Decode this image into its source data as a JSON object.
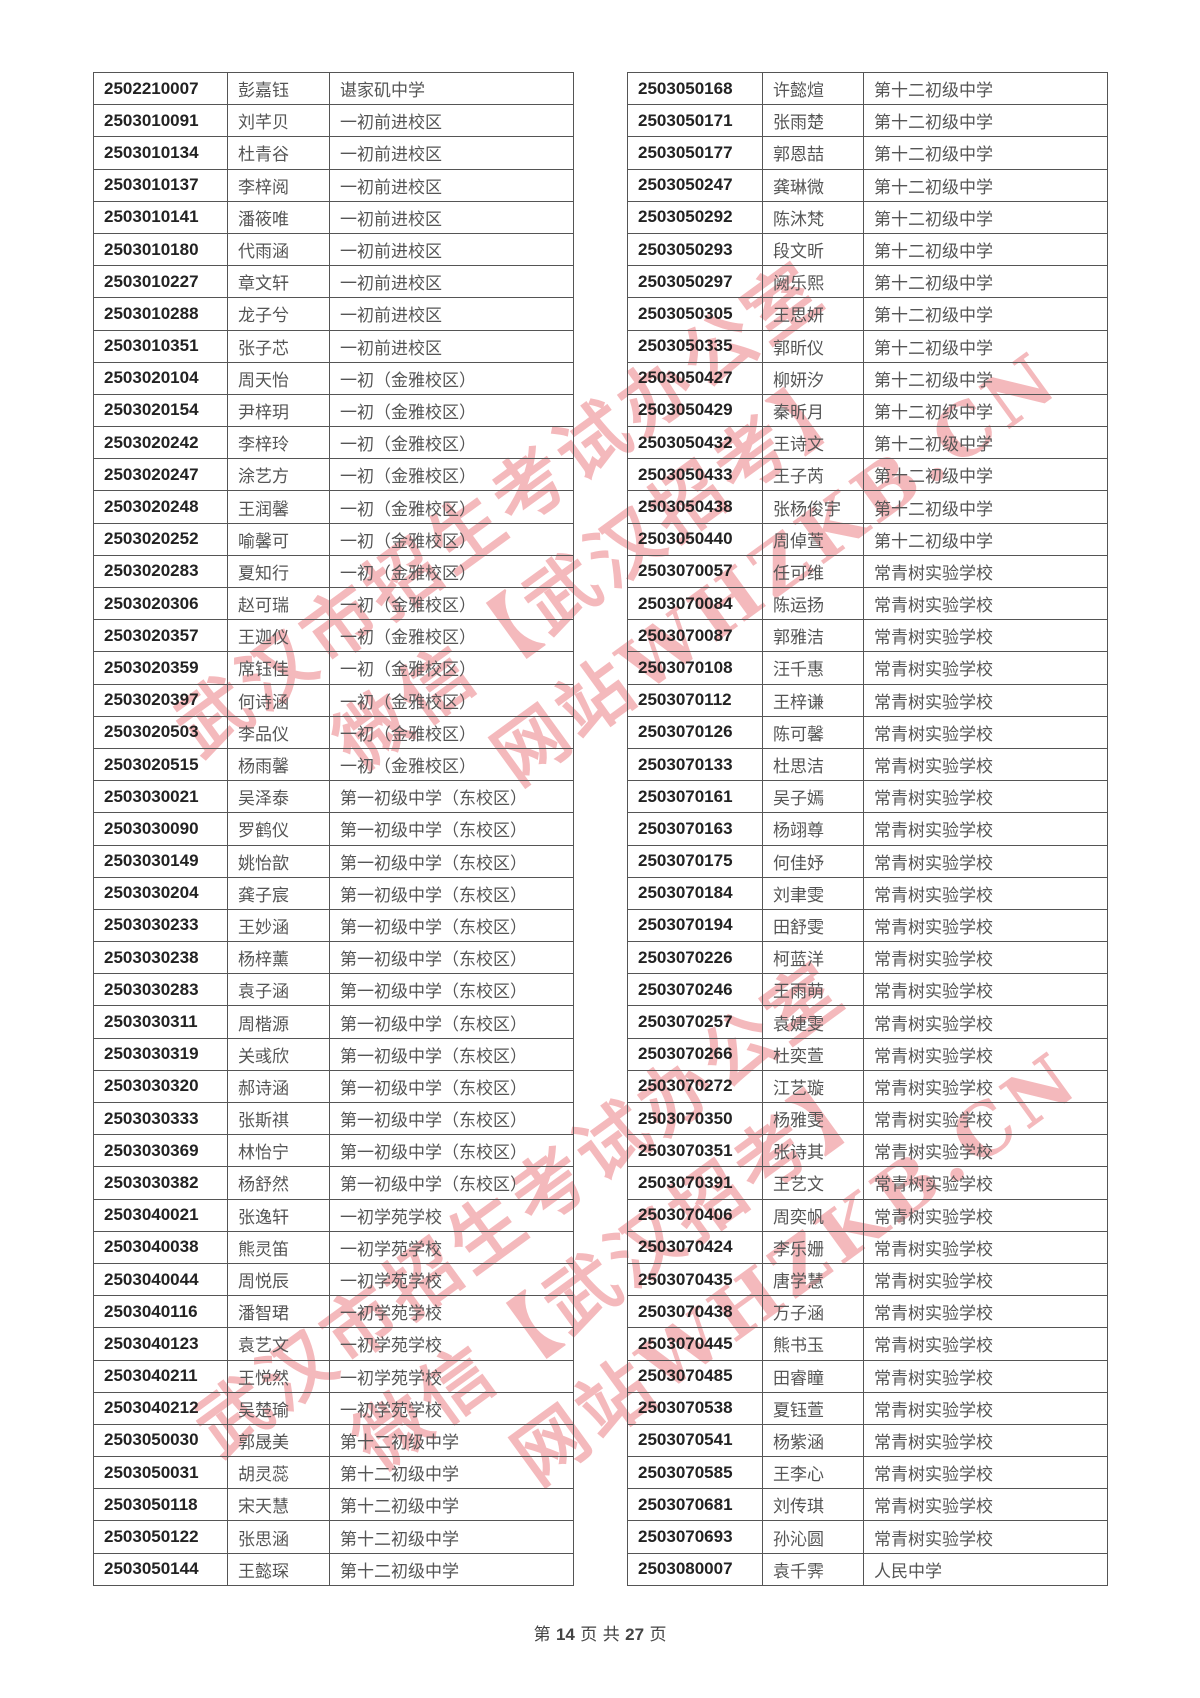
{
  "left_rows": [
    [
      "2502210007",
      "彭嘉钰",
      "谌家矶中学"
    ],
    [
      "2503010091",
      "刘芊贝",
      "一初前进校区"
    ],
    [
      "2503010134",
      "杜青谷",
      "一初前进校区"
    ],
    [
      "2503010137",
      "李梓阅",
      "一初前进校区"
    ],
    [
      "2503010141",
      "潘筱唯",
      "一初前进校区"
    ],
    [
      "2503010180",
      "代雨涵",
      "一初前进校区"
    ],
    [
      "2503010227",
      "章文轩",
      "一初前进校区"
    ],
    [
      "2503010288",
      "龙子兮",
      "一初前进校区"
    ],
    [
      "2503010351",
      "张子芯",
      "一初前进校区"
    ],
    [
      "2503020104",
      "周天怡",
      "一初（金雅校区）"
    ],
    [
      "2503020154",
      "尹梓玥",
      "一初（金雅校区）"
    ],
    [
      "2503020242",
      "李梓玲",
      "一初（金雅校区）"
    ],
    [
      "2503020247",
      "涂艺方",
      "一初（金雅校区）"
    ],
    [
      "2503020248",
      "王润馨",
      "一初（金雅校区）"
    ],
    [
      "2503020252",
      "喻馨可",
      "一初（金雅校区）"
    ],
    [
      "2503020283",
      "夏知行",
      "一初（金雅校区）"
    ],
    [
      "2503020306",
      "赵可瑞",
      "一初（金雅校区）"
    ],
    [
      "2503020357",
      "王迦仪",
      "一初（金雅校区）"
    ],
    [
      "2503020359",
      "席钰佳",
      "一初（金雅校区）"
    ],
    [
      "2503020397",
      "何诗涵",
      "一初（金雅校区）"
    ],
    [
      "2503020503",
      "李品仪",
      "一初（金雅校区）"
    ],
    [
      "2503020515",
      "杨雨馨",
      "一初（金雅校区）"
    ],
    [
      "2503030021",
      "吴泽泰",
      "第一初级中学（东校区）"
    ],
    [
      "2503030090",
      "罗鹤仪",
      "第一初级中学（东校区）"
    ],
    [
      "2503030149",
      "姚怡歆",
      "第一初级中学（东校区）"
    ],
    [
      "2503030204",
      "龚子宸",
      "第一初级中学（东校区）"
    ],
    [
      "2503030233",
      "王妙涵",
      "第一初级中学（东校区）"
    ],
    [
      "2503030238",
      "杨梓薰",
      "第一初级中学（东校区）"
    ],
    [
      "2503030283",
      "袁子涵",
      "第一初级中学（东校区）"
    ],
    [
      "2503030311",
      "周楷源",
      "第一初级中学（东校区）"
    ],
    [
      "2503030319",
      "关彧欣",
      "第一初级中学（东校区）"
    ],
    [
      "2503030320",
      "郝诗涵",
      "第一初级中学（东校区）"
    ],
    [
      "2503030333",
      "张斯祺",
      "第一初级中学（东校区）"
    ],
    [
      "2503030369",
      "林怡宁",
      "第一初级中学（东校区）"
    ],
    [
      "2503030382",
      "杨舒然",
      "第一初级中学（东校区）"
    ],
    [
      "2503040021",
      "张逸轩",
      "一初学苑学校"
    ],
    [
      "2503040038",
      "熊灵笛",
      "一初学苑学校"
    ],
    [
      "2503040044",
      "周悦辰",
      "一初学苑学校"
    ],
    [
      "2503040116",
      "潘智珺",
      "一初学苑学校"
    ],
    [
      "2503040123",
      "袁艺文",
      "一初学苑学校"
    ],
    [
      "2503040211",
      "王悦然",
      "一初学苑学校"
    ],
    [
      "2503040212",
      "吴楚瑜",
      "一初学苑学校"
    ],
    [
      "2503050030",
      "郭晟美",
      "第十二初级中学"
    ],
    [
      "2503050031",
      "胡灵蕊",
      "第十二初级中学"
    ],
    [
      "2503050118",
      "宋天慧",
      "第十二初级中学"
    ],
    [
      "2503050122",
      "张思涵",
      "第十二初级中学"
    ],
    [
      "2503050144",
      "王懿琛",
      "第十二初级中学"
    ]
  ],
  "right_rows": [
    [
      "2503050168",
      "许懿煊",
      "第十二初级中学"
    ],
    [
      "2503050171",
      "张雨楚",
      "第十二初级中学"
    ],
    [
      "2503050177",
      "郭恩喆",
      "第十二初级中学"
    ],
    [
      "2503050247",
      "龚琳微",
      "第十二初级中学"
    ],
    [
      "2503050292",
      "陈沐梵",
      "第十二初级中学"
    ],
    [
      "2503050293",
      "段文昕",
      "第十二初级中学"
    ],
    [
      "2503050297",
      "阙乐熙",
      "第十二初级中学"
    ],
    [
      "2503050305",
      "王思妍",
      "第十二初级中学"
    ],
    [
      "2503050335",
      "郭昕仪",
      "第十二初级中学"
    ],
    [
      "2503050427",
      "柳妍汐",
      "第十二初级中学"
    ],
    [
      "2503050429",
      "秦昕月",
      "第十二初级中学"
    ],
    [
      "2503050432",
      "王诗文",
      "第十二初级中学"
    ],
    [
      "2503050433",
      "王子芮",
      "第十二初级中学"
    ],
    [
      "2503050438",
      "张杨俊宇",
      "第十二初级中学"
    ],
    [
      "2503050440",
      "周倬萱",
      "第十二初级中学"
    ],
    [
      "2503070057",
      "任可维",
      "常青树实验学校"
    ],
    [
      "2503070084",
      "陈运扬",
      "常青树实验学校"
    ],
    [
      "2503070087",
      "郭雅洁",
      "常青树实验学校"
    ],
    [
      "2503070108",
      "汪千惠",
      "常青树实验学校"
    ],
    [
      "2503070112",
      "王梓谦",
      "常青树实验学校"
    ],
    [
      "2503070126",
      "陈可馨",
      "常青树实验学校"
    ],
    [
      "2503070133",
      "杜思洁",
      "常青树实验学校"
    ],
    [
      "2503070161",
      "吴子嫣",
      "常青树实验学校"
    ],
    [
      "2503070163",
      "杨翊尊",
      "常青树实验学校"
    ],
    [
      "2503070175",
      "何佳妤",
      "常青树实验学校"
    ],
    [
      "2503070184",
      "刘聿雯",
      "常青树实验学校"
    ],
    [
      "2503070194",
      "田舒雯",
      "常青树实验学校"
    ],
    [
      "2503070226",
      "柯蓝洋",
      "常青树实验学校"
    ],
    [
      "2503070246",
      "王雨萌",
      "常青树实验学校"
    ],
    [
      "2503070257",
      "袁婕雯",
      "常青树实验学校"
    ],
    [
      "2503070266",
      "杜奕萱",
      "常青树实验学校"
    ],
    [
      "2503070272",
      "江艺璇",
      "常青树实验学校"
    ],
    [
      "2503070350",
      "杨雅雯",
      "常青树实验学校"
    ],
    [
      "2503070351",
      "张诗其",
      "常青树实验学校"
    ],
    [
      "2503070391",
      "王艺文",
      "常青树实验学校"
    ],
    [
      "2503070406",
      "周奕帆",
      "常青树实验学校"
    ],
    [
      "2503070424",
      "李乐姗",
      "常青树实验学校"
    ],
    [
      "2503070435",
      "唐学慧",
      "常青树实验学校"
    ],
    [
      "2503070438",
      "万子涵",
      "常青树实验学校"
    ],
    [
      "2503070445",
      "熊书玉",
      "常青树实验学校"
    ],
    [
      "2503070485",
      "田睿瞳",
      "常青树实验学校"
    ],
    [
      "2503070538",
      "夏钰萱",
      "常青树实验学校"
    ],
    [
      "2503070541",
      "杨紫涵",
      "常青树实验学校"
    ],
    [
      "2503070585",
      "王李心",
      "常青树实验学校"
    ],
    [
      "2503070681",
      "刘传琪",
      "常青树实验学校"
    ],
    [
      "2503070693",
      "孙沁圆",
      "常青树实验学校"
    ],
    [
      "2503080007",
      "袁千霁",
      "人民中学"
    ]
  ],
  "footer": {
    "prefix": "第",
    "page": "14",
    "middle": "页 共",
    "total": "27",
    "suffix": "页"
  },
  "watermark": {
    "line1": "武汉市招生考试办公室",
    "line2": "微信【武汉招考】",
    "line3": "网站WHZKB.CN",
    "color": "#e14650"
  }
}
